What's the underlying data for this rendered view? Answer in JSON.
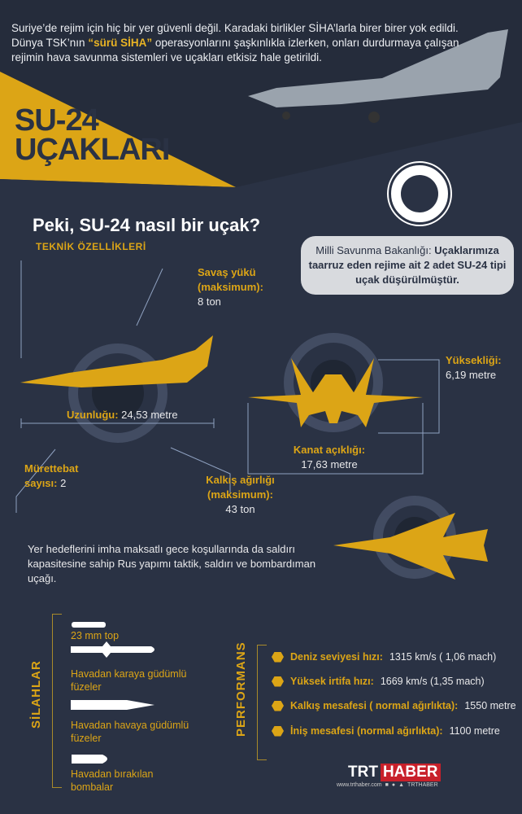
{
  "intro": {
    "line1": "Suriye’de rejim için hiç bir yer güvenli değil. Karadaki birlikler SİHA’larla birer birer yok edildi.",
    "line2a": "Dünya TSK’nın ",
    "line2b": "“sürü SİHA”",
    "line2c": " operasyonlarını şaşkınlıkla izlerken, onları durdurmaya çalışan",
    "line3": "rejimin hava savunma sistemleri ve uçakları etkisiz hale getirildi."
  },
  "title": {
    "line1": "SU-24",
    "line2": "UÇAKLARI"
  },
  "question": "Peki, SU-24 nasıl bir uçak?",
  "subtitle": "TEKNİK ÖZELLİKLERİ",
  "bubble": {
    "plain": "Milli Savunma Bakanlığı: ",
    "bold": "Uçaklarımıza taarruz eden rejime ait 2 adet SU-24 tipi uçak düşürülmüştür."
  },
  "specs": {
    "payload": {
      "label": "Savaş yükü (maksimum):",
      "value": "8 ton"
    },
    "length": {
      "label": "Uzunluğu:",
      "value": "24,53 metre"
    },
    "crew": {
      "label": "Mürettebat sayısı:",
      "value": "2"
    },
    "takeoff_weight": {
      "label": "Kalkış ağırlığı (maksimum):",
      "value": "43 ton"
    },
    "height": {
      "label": "Yüksekliği:",
      "value": "6,19 metre"
    },
    "wingspan": {
      "label": "Kanat açıklığı:",
      "value": "17,63 metre"
    }
  },
  "description": "Yer hedeflerini imha maksatlı gece koşullarında da saldırı kapasitesine sahip Rus yapımı taktik, saldırı ve bombardıman uçağı.",
  "weapons": {
    "heading": "SİLAHLAR",
    "items": [
      "23 mm top",
      "Havadan karaya güdümlü füzeler",
      "Havadan havaya güdümlü füzeler",
      "Havadan bırakılan bombalar"
    ]
  },
  "performance": {
    "heading": "PERFORMANS",
    "items": [
      {
        "label": "Deniz seviyesi hızı:",
        "value": "1315 km/s ( 1,06 mach)"
      },
      {
        "label": "Yüksek irtifa hızı:",
        "value": "1669 km/s (1,35 mach)"
      },
      {
        "label": "Kalkış mesafesi ( normal ağırlıkta):",
        "value": "1550 metre"
      },
      {
        "label": "İniş mesafesi (normal ağırlıkta):",
        "value": "1100 metre"
      }
    ]
  },
  "footer": {
    "brand1": "TRT",
    "brand2": "HABER",
    "site": "www.trthaber.com",
    "social": "TRTHABER"
  },
  "colors": {
    "background": "#2a3244",
    "accent": "#dca516",
    "brand_red": "#c8202a"
  }
}
